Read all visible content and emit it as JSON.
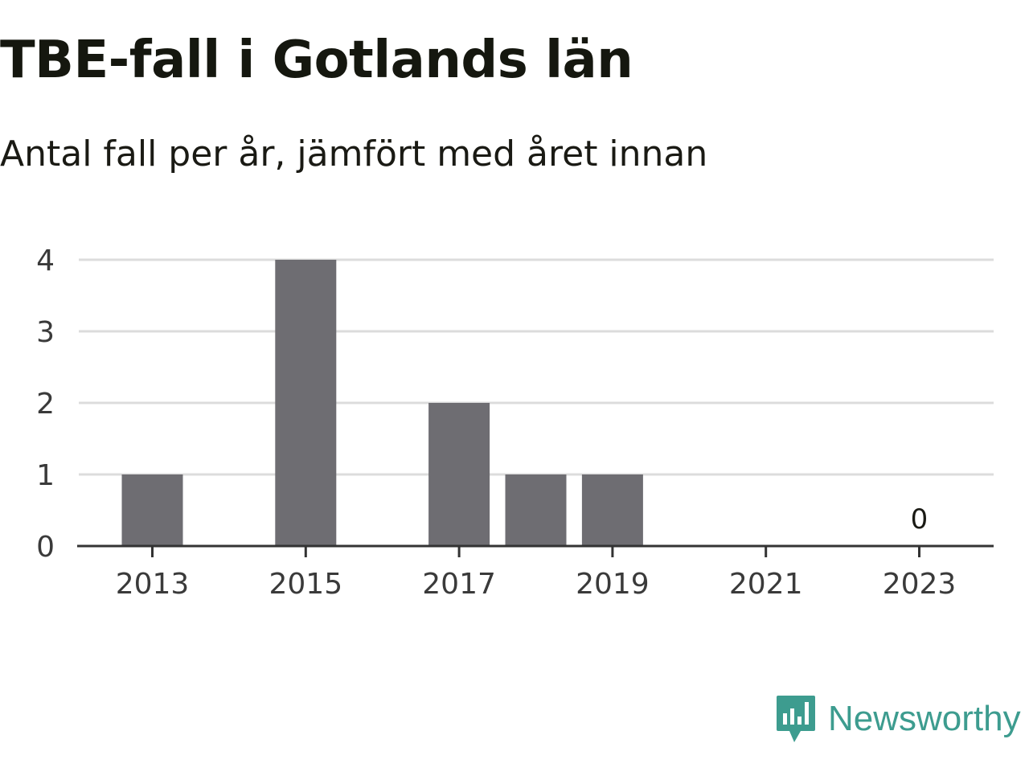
{
  "title": "TBE-fall i Gotlands län",
  "subtitle": "Antal fall per år, jämfört med året innan",
  "brand": {
    "name": "Newsworthy",
    "icon": "newsworthy-logo-icon",
    "color": "#3d9c8f"
  },
  "colors": {
    "bar": "#6e6d72",
    "grid": "#dcdcdc",
    "axis": "#333333"
  },
  "chart_data": {
    "type": "bar",
    "categories": [
      "2013",
      "2014",
      "2015",
      "2016",
      "2017",
      "2018",
      "2019",
      "2020",
      "2021",
      "2022",
      "2023"
    ],
    "values": [
      1,
      0,
      4,
      0,
      2,
      1,
      1,
      0,
      0,
      0,
      0
    ],
    "x_tick_labels": [
      "2013",
      "2015",
      "2017",
      "2019",
      "2021",
      "2023"
    ],
    "y_ticks": [
      0,
      1,
      2,
      3,
      4
    ],
    "ylim": [
      0,
      4
    ],
    "data_labels": [
      {
        "category": "2023",
        "text": "0"
      }
    ],
    "grid": true,
    "legend": "none"
  }
}
